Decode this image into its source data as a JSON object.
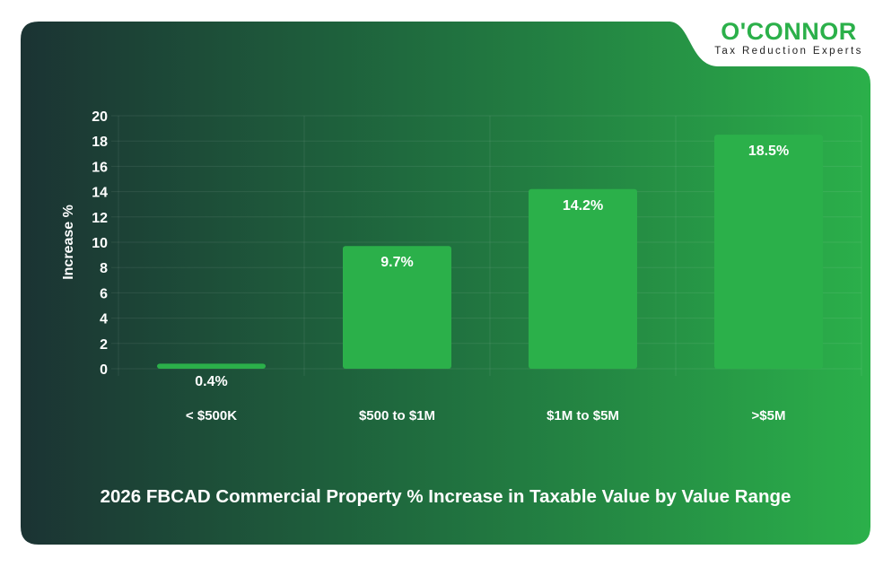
{
  "logo": {
    "name": "O'CONNOR",
    "tagline": "Tax Reduction Experts"
  },
  "colors": {
    "bar": "#2bb04a",
    "background_start": "#1b3333",
    "background_end": "#2bb04a",
    "text": "#ffffff"
  },
  "chart_data": {
    "type": "bar",
    "title": "2026 FBCAD Commercial Property % Increase in Taxable Value by Value Range",
    "xlabel": "",
    "ylabel": "Increase %",
    "ylim": [
      0,
      20
    ],
    "yticks": [
      0,
      2,
      4,
      6,
      8,
      10,
      12,
      14,
      16,
      18,
      20
    ],
    "grid": true,
    "categories": [
      "< $500K",
      "$500 to $1M",
      "$1M to $5M",
      ">$5M"
    ],
    "values": [
      0.4,
      9.7,
      14.2,
      18.5
    ],
    "data_labels": [
      "0.4%",
      "9.7%",
      "14.2%",
      "18.5%"
    ]
  }
}
